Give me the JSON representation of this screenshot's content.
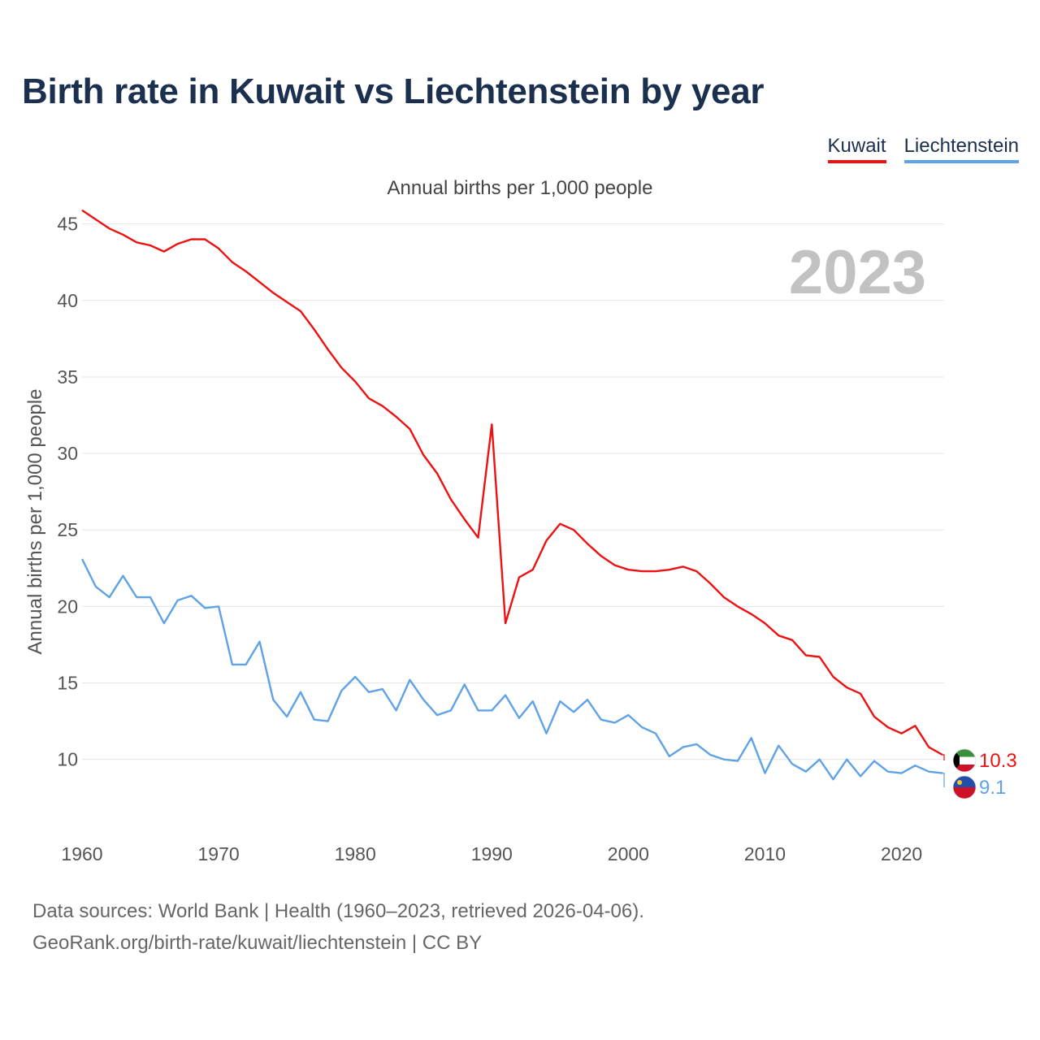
{
  "title": "Birth rate in Kuwait vs Liechtenstein by year",
  "legend": [
    {
      "label": "Kuwait",
      "color": "#ee1111"
    },
    {
      "label": "Liechtenstein",
      "color": "#5fa2e5"
    }
  ],
  "subtitle": "Annual births per 1,000 people",
  "year_label": "2023",
  "footer": {
    "line1": "Data sources: World Bank | Health (1960–2023, retrieved 2026-04-06).",
    "line2": "GeoRank.org/birth-rate/kuwait/liechtenstein | CC BY"
  },
  "chart_data": {
    "type": "line",
    "title": "Birth rate in Kuwait vs Liechtenstein by year",
    "xlabel": "",
    "ylabel": "Annual births per 1,000 people",
    "xlim": [
      1960,
      2023
    ],
    "ylim": [
      6,
      47
    ],
    "x_ticks": [
      "1960",
      "1970",
      "1980",
      "1990",
      "2000",
      "2010",
      "2020"
    ],
    "y_ticks": [
      "10",
      "15",
      "20",
      "25",
      "30",
      "35",
      "40",
      "45"
    ],
    "x_start": 1960,
    "series": [
      {
        "name": "Kuwait",
        "color": "#ee1111",
        "end_label": "10.3",
        "flag": "kuwait",
        "values": [
          45.9,
          45.3,
          44.7,
          44.3,
          43.8,
          43.6,
          43.2,
          43.7,
          44.0,
          44.0,
          43.4,
          42.5,
          41.9,
          41.2,
          40.5,
          39.9,
          39.3,
          38.1,
          36.8,
          35.6,
          34.7,
          33.6,
          33.1,
          32.4,
          31.6,
          29.9,
          28.7,
          27.0,
          25.7,
          24.5,
          31.9,
          18.9,
          21.9,
          22.4,
          24.3,
          25.4,
          25.0,
          24.1,
          23.3,
          22.7,
          22.4,
          22.3,
          22.3,
          22.4,
          22.6,
          22.3,
          21.5,
          20.6,
          20.0,
          19.5,
          18.9,
          18.1,
          17.8,
          16.8,
          16.7,
          15.4,
          14.7,
          14.3,
          12.8,
          12.1,
          11.7,
          12.2,
          10.8,
          10.3
        ]
      },
      {
        "name": "Liechtenstein",
        "color": "#5fa2e5",
        "end_label": "9.1",
        "flag": "liechtenstein",
        "values": [
          23.1,
          21.3,
          20.6,
          22.0,
          20.6,
          20.6,
          18.9,
          20.4,
          20.7,
          19.9,
          20.0,
          16.2,
          16.2,
          17.7,
          13.9,
          12.8,
          14.4,
          12.6,
          12.5,
          14.5,
          15.4,
          14.4,
          14.6,
          13.2,
          15.2,
          13.9,
          12.9,
          13.2,
          14.9,
          13.2,
          13.2,
          14.2,
          12.7,
          13.8,
          11.7,
          13.8,
          13.1,
          13.9,
          12.6,
          12.4,
          12.9,
          12.1,
          11.7,
          10.2,
          10.8,
          11.0,
          10.3,
          10.0,
          9.9,
          11.4,
          9.1,
          10.9,
          9.7,
          9.2,
          10.0,
          8.7,
          10.0,
          8.9,
          9.9,
          9.2,
          9.1,
          9.6,
          9.2,
          9.1
        ]
      }
    ]
  }
}
